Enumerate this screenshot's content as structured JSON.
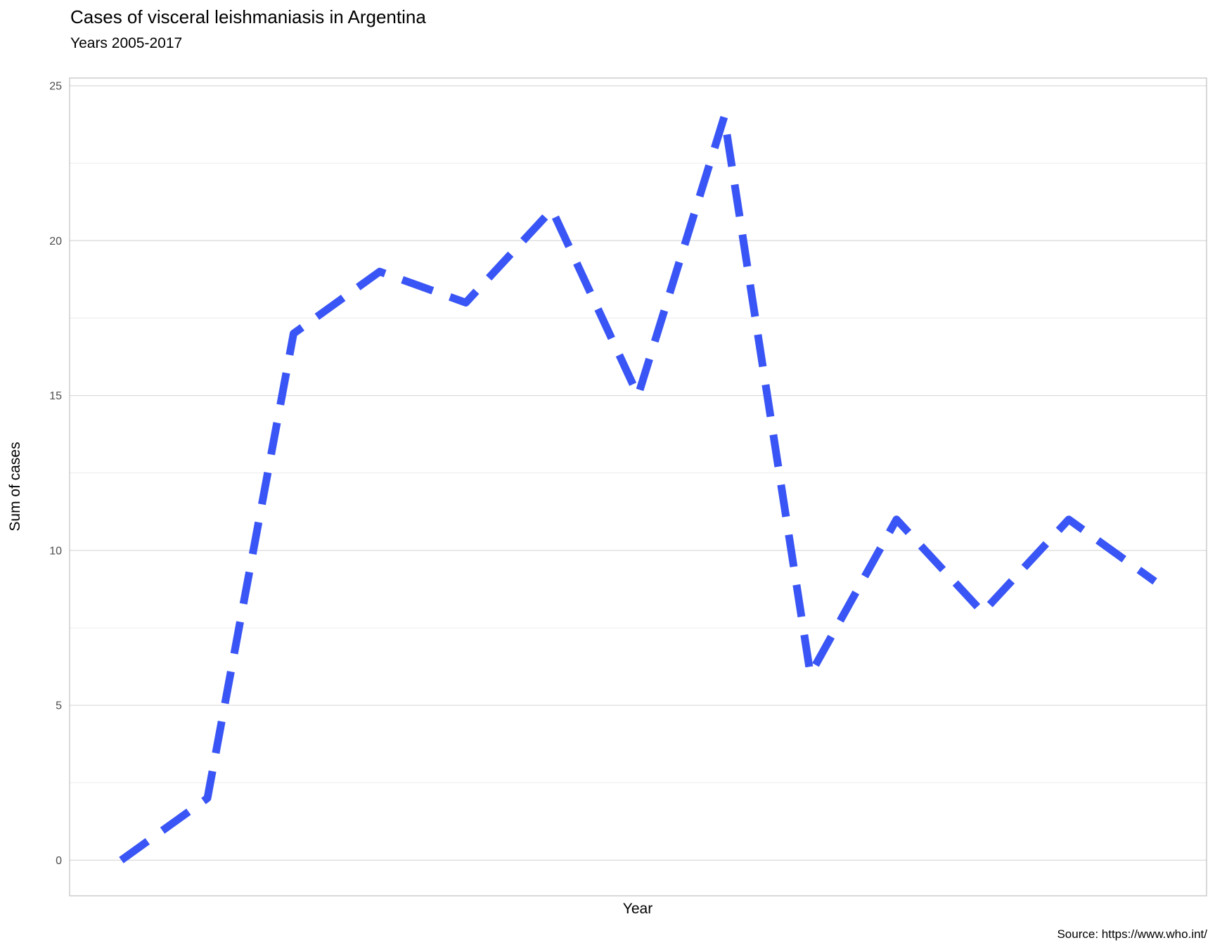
{
  "chart_data": {
    "type": "line",
    "title": "Cases of visceral leishmaniasis in Argentina",
    "subtitle": "Years 2005-2017",
    "xlabel": "Year",
    "ylabel": "Sum of cases",
    "caption": "Source: https://www.who.int/",
    "x": [
      1,
      2,
      3,
      4,
      5,
      6,
      7,
      8,
      9,
      10,
      11,
      12,
      13
    ],
    "values": [
      0,
      2,
      17,
      19,
      18,
      21,
      15,
      24,
      6,
      11,
      8,
      11,
      9
    ],
    "ylim": [
      -1.15,
      25.25
    ],
    "yticks": [
      0,
      5,
      10,
      15,
      20,
      25
    ],
    "ytick_labels": [
      "0",
      "5",
      "10",
      "15",
      "20",
      "25"
    ],
    "x_tick_labels_shown": false,
    "grid": true,
    "line_style": "dashed",
    "line_color": "#3a55f5",
    "grid_major_color": "#d9d9d9",
    "grid_minor_color": "#ececec",
    "panel_border_color": "#b3b3b3"
  }
}
